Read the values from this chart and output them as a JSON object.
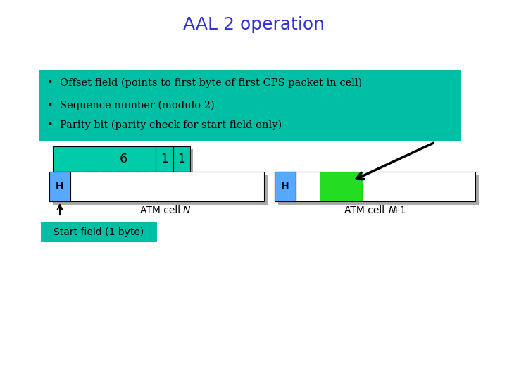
{
  "title": "AAL 2 operation",
  "title_color": "#3333CC",
  "title_fontsize": 18,
  "bg_color": "#FFFFFF",
  "bullet_box_color": "#00BFA5",
  "bullet_text_line1": "  Offset field (points to first byte of first CPS packet in cell)",
  "bullet_text_line2": "  Sequence number (modulo 2)",
  "bullet_text_line3": "  Parity bit (parity check for start field only)",
  "bullet_fontsize": 10.5,
  "start_field_label": "Start field (1 byte)",
  "start_field_box_color": "#00BFA5",
  "atm_n_label": "ATM cell ",
  "atm_n_italic": "N",
  "atm_n1_label": "ATM cell ",
  "atm_n1_italic": "N",
  "atm_n1_plus": "+1",
  "h_color": "#55AAFF",
  "green_color": "#22DD22",
  "teal_color": "#00CCAA",
  "shadow_color": "#AAAAAA",
  "font_family": "monospace"
}
